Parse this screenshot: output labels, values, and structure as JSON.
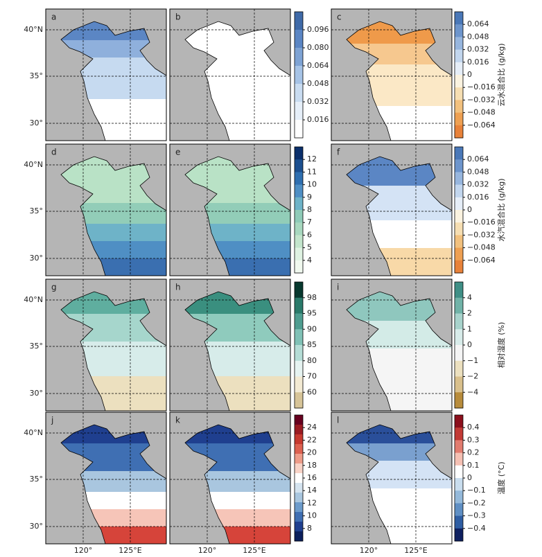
{
  "panels": [
    "a",
    "b",
    "c",
    "d",
    "e",
    "f",
    "g",
    "h",
    "i",
    "j",
    "k",
    "l"
  ],
  "lat_labels": [
    "40°N",
    "35°",
    "30°"
  ],
  "lon_labels": [
    "120°",
    "125°E"
  ],
  "rows": [
    {
      "left_ticks": [
        "0.096",
        "0.080",
        "0.064",
        "0.048",
        "0.032",
        "0.016"
      ],
      "right_ticks": [
        "0.064",
        "0.048",
        "0.032",
        "0.016",
        "0",
        "−0.016",
        "−0.032",
        "−0.048",
        "−0.064"
      ],
      "right_label": "云水混合比 (g/kg)"
    },
    {
      "left_ticks": [
        "12",
        "11",
        "10",
        "9",
        "8",
        "7",
        "6",
        "5",
        "4"
      ],
      "right_ticks": [
        "0.064",
        "0.048",
        "0.032",
        "0.016",
        "0",
        "−0.016",
        "−0.032",
        "−0.048",
        "−0.064"
      ],
      "right_label": "水汽混合比 (g/kg)"
    },
    {
      "left_ticks": [
        "98",
        "95",
        "90",
        "85",
        "80",
        "70",
        "60"
      ],
      "right_ticks": [
        "4",
        "2",
        "1",
        "0",
        "−1",
        "−2",
        "−4"
      ],
      "right_label": "相对湿度 (%)"
    },
    {
      "left_ticks": [
        "24",
        "22",
        "20",
        "18",
        "16",
        "14",
        "12",
        "10",
        "8"
      ],
      "right_ticks": [
        "0.4",
        "0.3",
        "0.2",
        "0.1",
        "0",
        "−0.1",
        "−0.2",
        "−0.3",
        "−0.4"
      ],
      "right_label": "温度 (°C)"
    }
  ]
}
